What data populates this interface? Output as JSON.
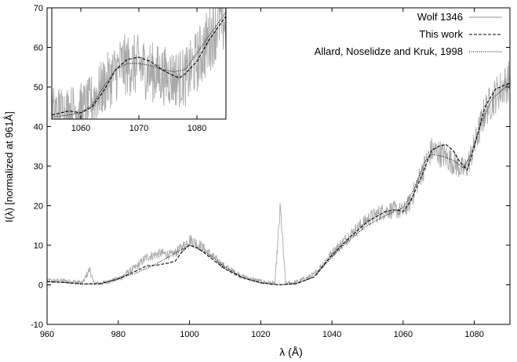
{
  "chart_data": [
    {
      "type": "line",
      "role": "main",
      "xlabel": "λ (Å)",
      "ylabel": "I(λ) [normalized at 961Å]",
      "xlim": [
        960,
        1090
      ],
      "ylim": [
        -10,
        70
      ],
      "x_ticks": [
        960,
        980,
        1000,
        1020,
        1040,
        1060,
        1080
      ],
      "y_ticks": [
        -10,
        0,
        10,
        20,
        30,
        40,
        50,
        60,
        70
      ],
      "grid": false,
      "legend_position": "top-right",
      "colors": {
        "observed": "#a9a9a9",
        "model": "#000000"
      },
      "series": [
        {
          "name": "Wolf 1346",
          "style": "solid-gray-noisy",
          "x": [
            960,
            965,
            970,
            972,
            973,
            975,
            980,
            985,
            988,
            992,
            995,
            998,
            1000,
            1003,
            1006,
            1010,
            1015,
            1020,
            1024,
            1025.5,
            1027,
            1030,
            1035,
            1040,
            1045,
            1050,
            1054,
            1057,
            1060,
            1062,
            1065,
            1068,
            1071,
            1074,
            1077,
            1078,
            1080,
            1083,
            1086,
            1088,
            1090
          ],
          "y": [
            1.0,
            1.0,
            0.5,
            4.0,
            0.5,
            0.3,
            1.5,
            4.5,
            7.0,
            8.0,
            7.5,
            9.5,
            11.5,
            10.0,
            7.5,
            4.5,
            2.0,
            0.8,
            0.3,
            19.5,
            0.3,
            0.6,
            2.5,
            8.0,
            12.5,
            16.5,
            18.5,
            19.0,
            18.5,
            21.0,
            28.0,
            34.0,
            33.0,
            31.0,
            29.0,
            30.0,
            35.0,
            44.0,
            48.0,
            50.0,
            52.0
          ]
        },
        {
          "name": "This work",
          "style": "dashed",
          "x": [
            960,
            965,
            970,
            975,
            980,
            985,
            988,
            991,
            994,
            996,
            998,
            1000,
            1002,
            1005,
            1010,
            1015,
            1020,
            1025,
            1030,
            1035,
            1040,
            1045,
            1050,
            1053,
            1055,
            1058,
            1060,
            1062,
            1065,
            1068,
            1070,
            1072,
            1074,
            1076,
            1078,
            1080,
            1083,
            1086,
            1090
          ],
          "y": [
            0.8,
            0.6,
            0.2,
            0.3,
            1.5,
            3.5,
            4.8,
            5.0,
            5.5,
            6.0,
            8.5,
            10.0,
            9.5,
            7.5,
            4.0,
            1.8,
            0.5,
            0.0,
            0.3,
            2.0,
            7.5,
            12.0,
            16.0,
            17.5,
            18.5,
            19.0,
            18.5,
            21.0,
            27.0,
            34.0,
            35.0,
            35.5,
            34.0,
            31.0,
            29.0,
            35.0,
            45.0,
            49.5,
            51.0
          ]
        },
        {
          "name": "Allard, Noselidze and Kruk, 1998",
          "style": "dotted",
          "x": [
            960,
            965,
            970,
            975,
            980,
            985,
            990,
            995,
            1000,
            1005,
            1010,
            1015,
            1020,
            1025,
            1030,
            1035,
            1040,
            1045,
            1050,
            1055,
            1060,
            1063,
            1066,
            1068,
            1071,
            1074,
            1077,
            1079,
            1082,
            1085,
            1090
          ],
          "y": [
            0.8,
            0.6,
            0.2,
            0.3,
            1.5,
            3.0,
            5.0,
            7.5,
            10.0,
            8.0,
            4.5,
            1.8,
            0.5,
            0.0,
            0.3,
            2.0,
            7.0,
            11.5,
            15.0,
            17.5,
            19.5,
            24.0,
            31.0,
            33.0,
            32.5,
            31.5,
            29.5,
            33.0,
            41.0,
            47.0,
            51.0
          ]
        }
      ]
    },
    {
      "type": "line",
      "role": "inset",
      "xlim": [
        1055,
        1085
      ],
      "ylim": [
        43,
        70
      ],
      "x_ticks": [
        1060,
        1070,
        1080
      ],
      "series": [
        {
          "name": "Wolf 1346",
          "style": "solid-gray-noisy",
          "x": [
            1055,
            1058,
            1061,
            1064,
            1067,
            1070,
            1073,
            1076,
            1078,
            1080,
            1082,
            1084,
            1085
          ],
          "y": [
            45,
            45,
            46,
            51,
            56,
            56,
            54,
            53,
            53,
            57,
            62,
            68,
            66
          ]
        },
        {
          "name": "This work",
          "style": "dashed",
          "x": [
            1055,
            1058,
            1060,
            1062,
            1064,
            1066,
            1068,
            1070,
            1072,
            1074,
            1076,
            1077,
            1078,
            1080,
            1082,
            1084,
            1085
          ],
          "y": [
            44.0,
            45.0,
            44.5,
            46.0,
            50.0,
            55.0,
            57.5,
            58.0,
            57.0,
            55.0,
            53.5,
            53.0,
            54.0,
            57.0,
            62.0,
            66.0,
            68.0
          ]
        },
        {
          "name": "Allard, Noselidze and Kruk, 1998",
          "style": "dotted",
          "x": [
            1055,
            1058,
            1060,
            1062,
            1064,
            1066,
            1068,
            1070,
            1072,
            1074,
            1076,
            1078,
            1080,
            1082,
            1084,
            1085
          ],
          "y": [
            43.5,
            44.0,
            44.5,
            46.5,
            51.0,
            55.0,
            56.5,
            56.5,
            56.0,
            55.0,
            54.5,
            55.0,
            59.0,
            63.0,
            67.0,
            69.0
          ]
        }
      ]
    }
  ]
}
